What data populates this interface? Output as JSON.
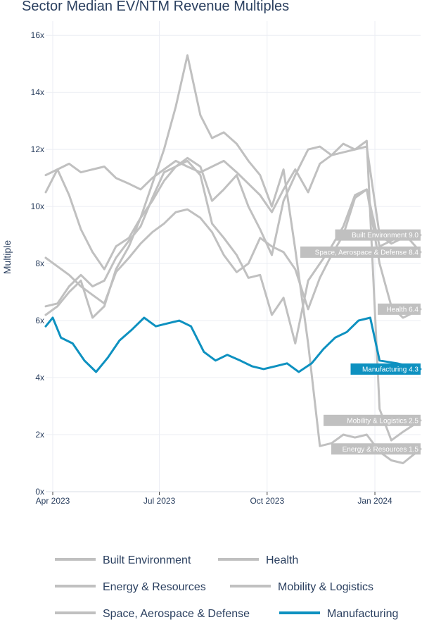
{
  "chart_data": {
    "type": "line",
    "title": "Sector Median EV/NTM Revenue Multiples",
    "xlabel": "",
    "ylabel": "Multiple",
    "ylim": [
      0,
      16.5
    ],
    "xlim": [
      "2023-03-26",
      "2024-02-09"
    ],
    "x_ticks": [
      {
        "date": "2023-04-01",
        "label": "Apr 2023"
      },
      {
        "date": "2023-07-01",
        "label": "Jul 2023"
      },
      {
        "date": "2023-10-01",
        "label": "Oct 2023"
      },
      {
        "date": "2024-01-01",
        "label": "Jan 2024"
      }
    ],
    "y_ticks": [
      {
        "value": 0,
        "label": "0x"
      },
      {
        "value": 2,
        "label": "2x"
      },
      {
        "value": 4,
        "label": "4x"
      },
      {
        "value": 6,
        "label": "6x"
      },
      {
        "value": 8,
        "label": "8x"
      },
      {
        "value": 10,
        "label": "10x"
      },
      {
        "value": 12,
        "label": "12x"
      },
      {
        "value": 14,
        "label": "14x"
      },
      {
        "value": 16,
        "label": "16x"
      }
    ],
    "grid": true,
    "legend_position": "bottom",
    "series": [
      {
        "name": "Built Environment",
        "color": "#c0c0c0",
        "end_label": "Built Environment 9.0",
        "points": [
          [
            "2023-03-26",
            6.5
          ],
          [
            "2023-04-05",
            6.6
          ],
          [
            "2023-04-15",
            7.2
          ],
          [
            "2023-04-25",
            7.6
          ],
          [
            "2023-05-05",
            7.2
          ],
          [
            "2023-05-15",
            7.4
          ],
          [
            "2023-05-25",
            8.2
          ],
          [
            "2023-06-05",
            8.8
          ],
          [
            "2023-06-15",
            9.3
          ],
          [
            "2023-06-25",
            10.3
          ],
          [
            "2023-07-05",
            11.2
          ],
          [
            "2023-07-15",
            11.4
          ],
          [
            "2023-07-25",
            11.7
          ],
          [
            "2023-08-05",
            11.4
          ],
          [
            "2023-08-15",
            10.2
          ],
          [
            "2023-08-25",
            10.6
          ],
          [
            "2023-09-05",
            11.1
          ],
          [
            "2023-09-15",
            10.0
          ],
          [
            "2023-09-25",
            9.2
          ],
          [
            "2023-10-05",
            8.3
          ],
          [
            "2023-10-15",
            10.2
          ],
          [
            "2023-10-25",
            11.1
          ],
          [
            "2023-11-05",
            12.0
          ],
          [
            "2023-11-15",
            12.1
          ],
          [
            "2023-11-25",
            11.8
          ],
          [
            "2023-12-05",
            11.9
          ],
          [
            "2023-12-15",
            12.0
          ],
          [
            "2023-12-25",
            12.1
          ],
          [
            "2024-01-05",
            9.0
          ],
          [
            "2024-01-15",
            8.7
          ],
          [
            "2024-01-25",
            8.9
          ],
          [
            "2024-02-09",
            9.0
          ]
        ]
      },
      {
        "name": "Health",
        "color": "#c0c0c0",
        "end_label": "Health 6.4",
        "points": [
          [
            "2023-03-26",
            6.2
          ],
          [
            "2023-04-05",
            6.5
          ],
          [
            "2023-04-15",
            7.0
          ],
          [
            "2023-04-25",
            7.4
          ],
          [
            "2023-05-05",
            6.1
          ],
          [
            "2023-05-15",
            6.5
          ],
          [
            "2023-05-25",
            7.8
          ],
          [
            "2023-06-05",
            8.6
          ],
          [
            "2023-06-15",
            9.6
          ],
          [
            "2023-06-25",
            10.2
          ],
          [
            "2023-07-05",
            10.9
          ],
          [
            "2023-07-15",
            11.4
          ],
          [
            "2023-07-25",
            11.6
          ],
          [
            "2023-08-05",
            11.1
          ],
          [
            "2023-08-15",
            9.4
          ],
          [
            "2023-08-25",
            8.9
          ],
          [
            "2023-09-05",
            8.3
          ],
          [
            "2023-09-15",
            7.5
          ],
          [
            "2023-09-25",
            7.6
          ],
          [
            "2023-10-05",
            6.2
          ],
          [
            "2023-10-15",
            6.8
          ],
          [
            "2023-10-25",
            5.2
          ],
          [
            "2023-11-05",
            7.4
          ],
          [
            "2023-11-15",
            8.0
          ],
          [
            "2023-11-25",
            8.6
          ],
          [
            "2023-12-05",
            9.3
          ],
          [
            "2023-12-15",
            10.4
          ],
          [
            "2023-12-25",
            10.6
          ],
          [
            "2024-01-05",
            8.0
          ],
          [
            "2024-01-15",
            6.5
          ],
          [
            "2024-01-25",
            6.1
          ],
          [
            "2024-02-09",
            6.4
          ]
        ]
      },
      {
        "name": "Energy & Resources",
        "color": "#c0c0c0",
        "end_label": "Energy & Resources 1.5",
        "points": [
          [
            "2023-03-26",
            10.5
          ],
          [
            "2023-04-05",
            11.3
          ],
          [
            "2023-04-15",
            10.4
          ],
          [
            "2023-04-25",
            9.2
          ],
          [
            "2023-05-05",
            8.4
          ],
          [
            "2023-05-15",
            7.8
          ],
          [
            "2023-05-25",
            8.6
          ],
          [
            "2023-06-05",
            8.9
          ],
          [
            "2023-06-15",
            9.6
          ],
          [
            "2023-06-25",
            10.8
          ],
          [
            "2023-07-05",
            12.0
          ],
          [
            "2023-07-15",
            13.5
          ],
          [
            "2023-07-25",
            15.3
          ],
          [
            "2023-08-05",
            13.2
          ],
          [
            "2023-08-15",
            12.4
          ],
          [
            "2023-08-25",
            12.6
          ],
          [
            "2023-09-05",
            12.2
          ],
          [
            "2023-09-15",
            11.6
          ],
          [
            "2023-09-25",
            11.1
          ],
          [
            "2023-10-05",
            10.0
          ],
          [
            "2023-10-15",
            11.3
          ],
          [
            "2023-10-25",
            8.5
          ],
          [
            "2023-11-05",
            5.2
          ],
          [
            "2023-11-15",
            1.6
          ],
          [
            "2023-11-25",
            1.7
          ],
          [
            "2023-12-05",
            2.0
          ],
          [
            "2023-12-15",
            1.9
          ],
          [
            "2023-12-25",
            2.0
          ],
          [
            "2024-01-05",
            1.4
          ],
          [
            "2024-01-15",
            1.1
          ],
          [
            "2024-01-25",
            1.0
          ],
          [
            "2024-02-09",
            1.5
          ]
        ]
      },
      {
        "name": "Mobility & Logistics",
        "color": "#c0c0c0",
        "end_label": "Mobility & Logistics 2.5",
        "points": [
          [
            "2023-03-26",
            11.1
          ],
          [
            "2023-04-05",
            11.3
          ],
          [
            "2023-04-15",
            11.5
          ],
          [
            "2023-04-25",
            11.2
          ],
          [
            "2023-05-05",
            11.3
          ],
          [
            "2023-05-15",
            11.4
          ],
          [
            "2023-05-25",
            11.0
          ],
          [
            "2023-06-05",
            10.8
          ],
          [
            "2023-06-15",
            10.6
          ],
          [
            "2023-06-25",
            11.0
          ],
          [
            "2023-07-05",
            11.3
          ],
          [
            "2023-07-15",
            11.6
          ],
          [
            "2023-07-25",
            11.4
          ],
          [
            "2023-08-05",
            11.2
          ],
          [
            "2023-08-15",
            11.4
          ],
          [
            "2023-08-25",
            11.6
          ],
          [
            "2023-09-05",
            11.2
          ],
          [
            "2023-09-15",
            10.8
          ],
          [
            "2023-09-25",
            10.4
          ],
          [
            "2023-10-05",
            9.8
          ],
          [
            "2023-10-15",
            10.6
          ],
          [
            "2023-10-25",
            11.3
          ],
          [
            "2023-11-05",
            10.5
          ],
          [
            "2023-11-15",
            11.5
          ],
          [
            "2023-11-25",
            11.8
          ],
          [
            "2023-12-05",
            12.2
          ],
          [
            "2023-12-15",
            12.0
          ],
          [
            "2023-12-25",
            12.3
          ],
          [
            "2024-01-05",
            2.9
          ],
          [
            "2024-01-15",
            1.8
          ],
          [
            "2024-01-25",
            2.1
          ],
          [
            "2024-02-09",
            2.5
          ]
        ]
      },
      {
        "name": "Space, Aerospace & Defense",
        "color": "#c0c0c0",
        "end_label": "Space, Aerospace & Defense 8.4",
        "points": [
          [
            "2023-03-26",
            8.2
          ],
          [
            "2023-04-05",
            7.9
          ],
          [
            "2023-04-15",
            7.6
          ],
          [
            "2023-04-25",
            7.2
          ],
          [
            "2023-05-05",
            6.9
          ],
          [
            "2023-05-15",
            6.6
          ],
          [
            "2023-05-25",
            7.7
          ],
          [
            "2023-06-05",
            8.2
          ],
          [
            "2023-06-15",
            8.7
          ],
          [
            "2023-06-25",
            9.1
          ],
          [
            "2023-07-05",
            9.4
          ],
          [
            "2023-07-15",
            9.8
          ],
          [
            "2023-07-25",
            9.9
          ],
          [
            "2023-08-05",
            9.6
          ],
          [
            "2023-08-15",
            9.1
          ],
          [
            "2023-08-25",
            8.3
          ],
          [
            "2023-09-05",
            7.7
          ],
          [
            "2023-09-15",
            8.0
          ],
          [
            "2023-09-25",
            8.9
          ],
          [
            "2023-10-05",
            8.6
          ],
          [
            "2023-10-15",
            8.4
          ],
          [
            "2023-10-25",
            7.8
          ],
          [
            "2023-11-05",
            6.4
          ],
          [
            "2023-11-15",
            7.5
          ],
          [
            "2023-11-25",
            8.3
          ],
          [
            "2023-12-05",
            9.0
          ],
          [
            "2023-12-15",
            10.3
          ],
          [
            "2023-12-25",
            10.6
          ],
          [
            "2024-01-05",
            8.6
          ],
          [
            "2024-01-15",
            8.8
          ],
          [
            "2024-01-25",
            9.1
          ],
          [
            "2024-02-09",
            8.4
          ]
        ]
      },
      {
        "name": "Manufacturing",
        "color": "#0e91c0",
        "end_label": "Manufacturing 4.3",
        "points": [
          [
            "2023-03-26",
            5.8
          ],
          [
            "2023-04-01",
            6.1
          ],
          [
            "2023-04-08",
            5.4
          ],
          [
            "2023-04-18",
            5.2
          ],
          [
            "2023-04-28",
            4.6
          ],
          [
            "2023-05-08",
            4.2
          ],
          [
            "2023-05-18",
            4.7
          ],
          [
            "2023-05-28",
            5.3
          ],
          [
            "2023-06-08",
            5.7
          ],
          [
            "2023-06-18",
            6.1
          ],
          [
            "2023-06-28",
            5.8
          ],
          [
            "2023-07-08",
            5.9
          ],
          [
            "2023-07-18",
            6.0
          ],
          [
            "2023-07-28",
            5.8
          ],
          [
            "2023-08-08",
            4.9
          ],
          [
            "2023-08-18",
            4.6
          ],
          [
            "2023-08-28",
            4.8
          ],
          [
            "2023-09-08",
            4.6
          ],
          [
            "2023-09-18",
            4.4
          ],
          [
            "2023-09-28",
            4.3
          ],
          [
            "2023-10-08",
            4.4
          ],
          [
            "2023-10-18",
            4.5
          ],
          [
            "2023-10-28",
            4.2
          ],
          [
            "2023-11-08",
            4.5
          ],
          [
            "2023-11-18",
            5.0
          ],
          [
            "2023-11-28",
            5.4
          ],
          [
            "2023-12-08",
            5.6
          ],
          [
            "2023-12-18",
            6.0
          ],
          [
            "2023-12-28",
            6.1
          ],
          [
            "2024-01-05",
            4.6
          ],
          [
            "2024-01-20",
            4.5
          ],
          [
            "2024-02-09",
            4.3
          ]
        ]
      }
    ]
  }
}
